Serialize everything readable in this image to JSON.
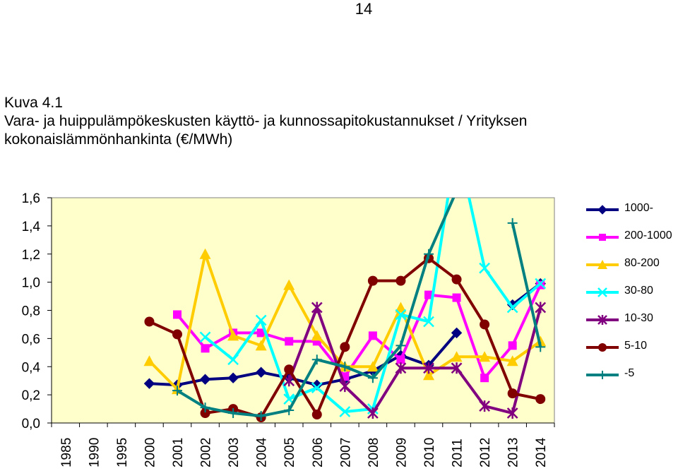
{
  "page_number": "14",
  "caption": {
    "line1": "Kuva 4.1",
    "line2": "Vara- ja huippulämpökeskusten käyttö- ja kunnossapitokustannukset / Yrityksen",
    "line3": "kokonaislämmönhankinta (€/MWh)"
  },
  "chart_data": {
    "type": "line",
    "categories": [
      "1985",
      "1990",
      "1995",
      "2000",
      "2001",
      "2002",
      "2003",
      "2004",
      "2005",
      "2006",
      "2007",
      "2008",
      "2009",
      "2010",
      "2011",
      "2012",
      "2013",
      "2014"
    ],
    "ylim": [
      0,
      1.6
    ],
    "yticks": [
      "0,0",
      "0,2",
      "0,4",
      "0,6",
      "0,8",
      "1,0",
      "1,2",
      "1,4",
      "1,6"
    ],
    "plot_background": "#ffffcc",
    "grid": false,
    "legend_position": "right",
    "series": [
      {
        "name": "1000-",
        "color": "#000080",
        "marker": "diamond",
        "values": [
          null,
          null,
          null,
          0.28,
          0.27,
          0.31,
          0.32,
          0.36,
          0.32,
          0.27,
          0.31,
          0.37,
          0.48,
          0.41,
          0.64,
          null,
          0.84,
          0.99
        ]
      },
      {
        "name": "200-1000",
        "color": "#ff00ff",
        "marker": "square",
        "values": [
          null,
          null,
          null,
          null,
          0.77,
          0.53,
          0.64,
          0.64,
          0.58,
          0.58,
          0.33,
          0.62,
          0.45,
          0.91,
          0.89,
          0.32,
          0.55,
          0.98
        ]
      },
      {
        "name": "80-200",
        "color": "#ffcc00",
        "marker": "triangle",
        "values": [
          null,
          null,
          null,
          0.44,
          0.24,
          1.2,
          0.62,
          0.55,
          0.98,
          0.62,
          0.4,
          0.4,
          0.82,
          0.34,
          0.47,
          0.47,
          0.44,
          0.58
        ]
      },
      {
        "name": "30-80",
        "color": "#00ffff",
        "marker": "x",
        "values": [
          null,
          null,
          null,
          null,
          null,
          0.61,
          0.45,
          0.73,
          0.17,
          0.25,
          0.08,
          0.1,
          0.77,
          0.72,
          2.0,
          1.1,
          0.82,
          0.99
        ]
      },
      {
        "name": "10-30",
        "color": "#800080",
        "marker": "star",
        "values": [
          null,
          null,
          null,
          null,
          null,
          null,
          null,
          null,
          0.3,
          0.82,
          0.26,
          0.07,
          0.39,
          0.39,
          0.39,
          0.12,
          0.07,
          0.82
        ]
      },
      {
        "name": "5-10",
        "color": "#800000",
        "marker": "circle",
        "values": [
          null,
          null,
          null,
          0.72,
          0.63,
          0.07,
          0.1,
          0.04,
          0.38,
          0.06,
          0.54,
          1.01,
          1.01,
          1.17,
          1.02,
          0.7,
          0.21,
          0.17
        ]
      },
      {
        "name": "-5",
        "color": "#008080",
        "marker": "plus",
        "values": [
          null,
          null,
          null,
          null,
          0.23,
          0.11,
          0.07,
          0.05,
          0.09,
          0.45,
          0.4,
          0.32,
          0.55,
          1.2,
          1.65,
          null,
          1.42,
          0.54
        ]
      }
    ]
  }
}
